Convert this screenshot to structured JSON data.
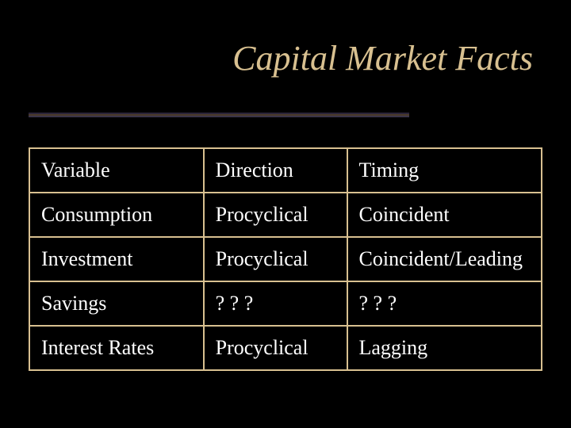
{
  "title": "Capital Market Facts",
  "colors": {
    "background": "#000000",
    "title_text": "#d8c090",
    "cell_text": "#ffffff",
    "border": "#d8c090"
  },
  "typography": {
    "title_fontsize": 44,
    "title_style": "italic",
    "cell_fontsize": 26,
    "font_family": "Times New Roman"
  },
  "table": {
    "columns": [
      {
        "key": "variable",
        "label": "Variable",
        "width_pct": 34
      },
      {
        "key": "direction",
        "label": "Direction",
        "width_pct": 28
      },
      {
        "key": "timing",
        "label": "Timing",
        "width_pct": 38
      }
    ],
    "rows": [
      {
        "variable": "Consumption",
        "direction": "Procyclical",
        "timing": "Coincident"
      },
      {
        "variable": "Investment",
        "direction": "Procyclical",
        "timing": "Coincident/Leading"
      },
      {
        "variable": "Savings",
        "direction": "? ? ?",
        "timing": "? ? ?"
      },
      {
        "variable": "Interest Rates",
        "direction": "Procyclical",
        "timing": "Lagging"
      }
    ]
  }
}
